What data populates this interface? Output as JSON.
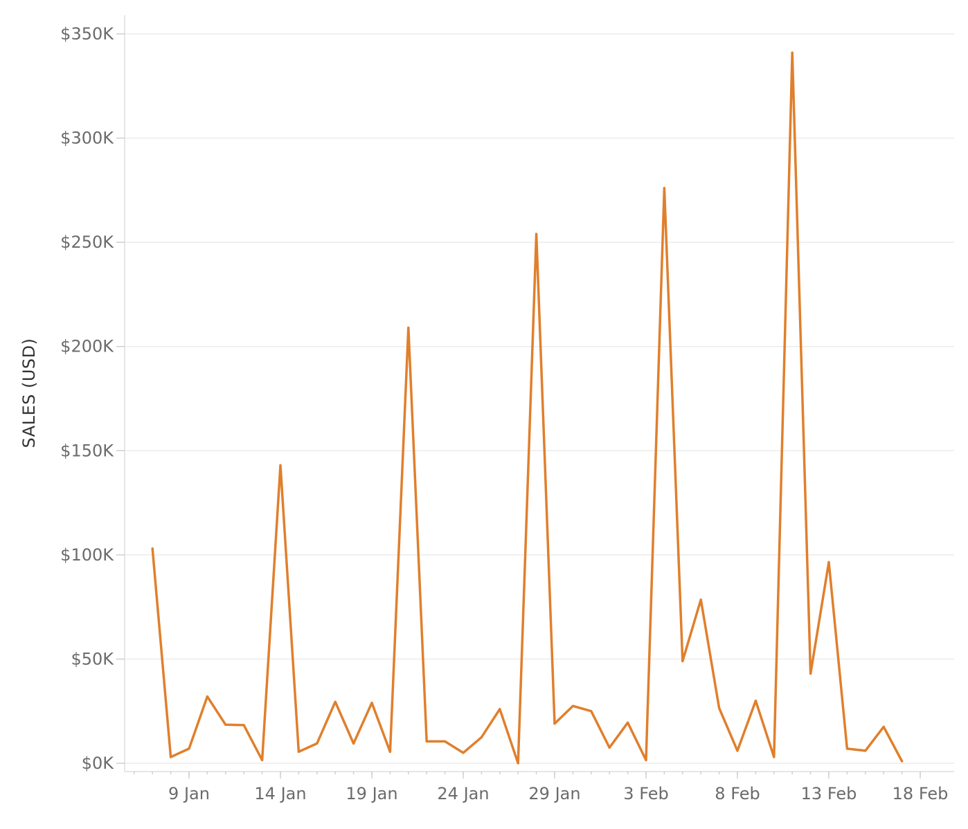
{
  "chart_data": {
    "type": "line",
    "title": "",
    "xlabel": "",
    "ylabel": "SALES (USD)",
    "ylim": [
      0,
      350000
    ],
    "y_ticks": [
      {
        "value": 0,
        "label": "$0K"
      },
      {
        "value": 50000,
        "label": "$50K"
      },
      {
        "value": 100000,
        "label": "$100K"
      },
      {
        "value": 150000,
        "label": "$150K"
      },
      {
        "value": 200000,
        "label": "$200K"
      },
      {
        "value": 250000,
        "label": "$250K"
      },
      {
        "value": 300000,
        "label": "$300K"
      },
      {
        "value": 350000,
        "label": "$350K"
      }
    ],
    "xlim": [
      "2021-01-05",
      "2021-02-19"
    ],
    "x_ticks": [
      {
        "value": "2021-01-09",
        "label": "9 Jan"
      },
      {
        "value": "2021-01-14",
        "label": "14 Jan"
      },
      {
        "value": "2021-01-19",
        "label": "19 Jan"
      },
      {
        "value": "2021-01-24",
        "label": "24 Jan"
      },
      {
        "value": "2021-01-29",
        "label": "29 Jan"
      },
      {
        "value": "2021-02-03",
        "label": "3 Feb"
      },
      {
        "value": "2021-02-08",
        "label": "8 Feb"
      },
      {
        "value": "2021-02-13",
        "label": "13 Feb"
      },
      {
        "value": "2021-02-18",
        "label": "18 Feb"
      }
    ],
    "grid": true,
    "color": "#e07f2c",
    "series": [
      {
        "x": [
          "2021-01-07",
          "2021-01-08",
          "2021-01-09",
          "2021-01-10",
          "2021-01-11",
          "2021-01-12",
          "2021-01-13",
          "2021-01-14",
          "2021-01-15",
          "2021-01-16",
          "2021-01-17",
          "2021-01-18",
          "2021-01-19",
          "2021-01-20",
          "2021-01-21",
          "2021-01-22",
          "2021-01-23",
          "2021-01-24",
          "2021-01-25",
          "2021-01-26",
          "2021-01-27",
          "2021-01-28",
          "2021-01-29",
          "2021-01-30",
          "2021-01-31",
          "2021-02-01",
          "2021-02-02",
          "2021-02-03",
          "2021-02-04",
          "2021-02-05",
          "2021-02-06",
          "2021-02-07",
          "2021-02-08",
          "2021-02-09",
          "2021-02-10",
          "2021-02-11",
          "2021-02-12",
          "2021-02-13",
          "2021-02-14",
          "2021-02-15",
          "2021-02-16",
          "2021-02-17"
        ],
        "values": [
          103000,
          3000,
          7000,
          32000,
          18500,
          18300,
          1500,
          143000,
          5500,
          9500,
          29500,
          9500,
          29000,
          5500,
          209000,
          10500,
          10500,
          5000,
          12500,
          26000,
          0,
          254000,
          19000,
          27500,
          25000,
          7500,
          19500,
          1500,
          276000,
          49000,
          78500,
          26500,
          6000,
          30000,
          3000,
          341000,
          43000,
          96500,
          7000,
          6000,
          17500,
          1000
        ]
      }
    ]
  }
}
